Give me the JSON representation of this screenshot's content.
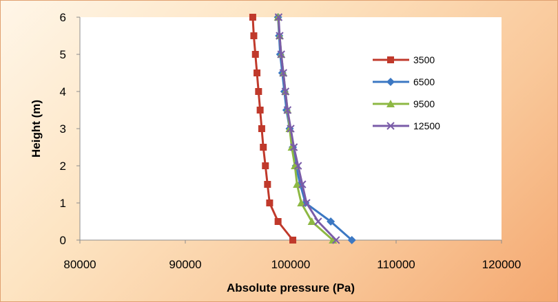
{
  "chart_data": {
    "type": "line",
    "xlabel": "Absolute pressure (Pa)",
    "ylabel": "Height (m)",
    "xlim": [
      80000,
      120000
    ],
    "ylim": [
      0,
      6
    ],
    "x_ticks": [
      "80000",
      "90000",
      "100000",
      "110000",
      "120000"
    ],
    "y_ticks": [
      "0",
      "1",
      "2",
      "3",
      "4",
      "5",
      "6"
    ],
    "grid": false,
    "legend_position": "right",
    "y": [
      0,
      0.5,
      1,
      1.5,
      2,
      2.5,
      3,
      3.5,
      4,
      4.5,
      5,
      5.5,
      6
    ],
    "series": [
      {
        "name": "3500",
        "color": "#c0392b",
        "marker": "square",
        "x": [
          100200,
          98800,
          98000,
          97800,
          97600,
          97400,
          97250,
          97100,
          96950,
          96800,
          96650,
          96500,
          96400
        ]
      },
      {
        "name": "6500",
        "color": "#3c78c3",
        "marker": "diamond",
        "x": [
          105800,
          103800,
          101400,
          100900,
          100500,
          100200,
          99900,
          99600,
          99400,
          99200,
          99000,
          98900,
          98800
        ]
      },
      {
        "name": "9500",
        "color": "#8db843",
        "marker": "triangle",
        "x": [
          104000,
          102000,
          101000,
          100600,
          100400,
          100100,
          99900,
          99700,
          99500,
          99300,
          99100,
          98950,
          98800
        ]
      },
      {
        "name": "12500",
        "color": "#7a5ca8",
        "marker": "x",
        "x": [
          104300,
          102600,
          101500,
          101100,
          100700,
          100300,
          100000,
          99700,
          99500,
          99300,
          99100,
          98950,
          98850
        ]
      }
    ]
  }
}
